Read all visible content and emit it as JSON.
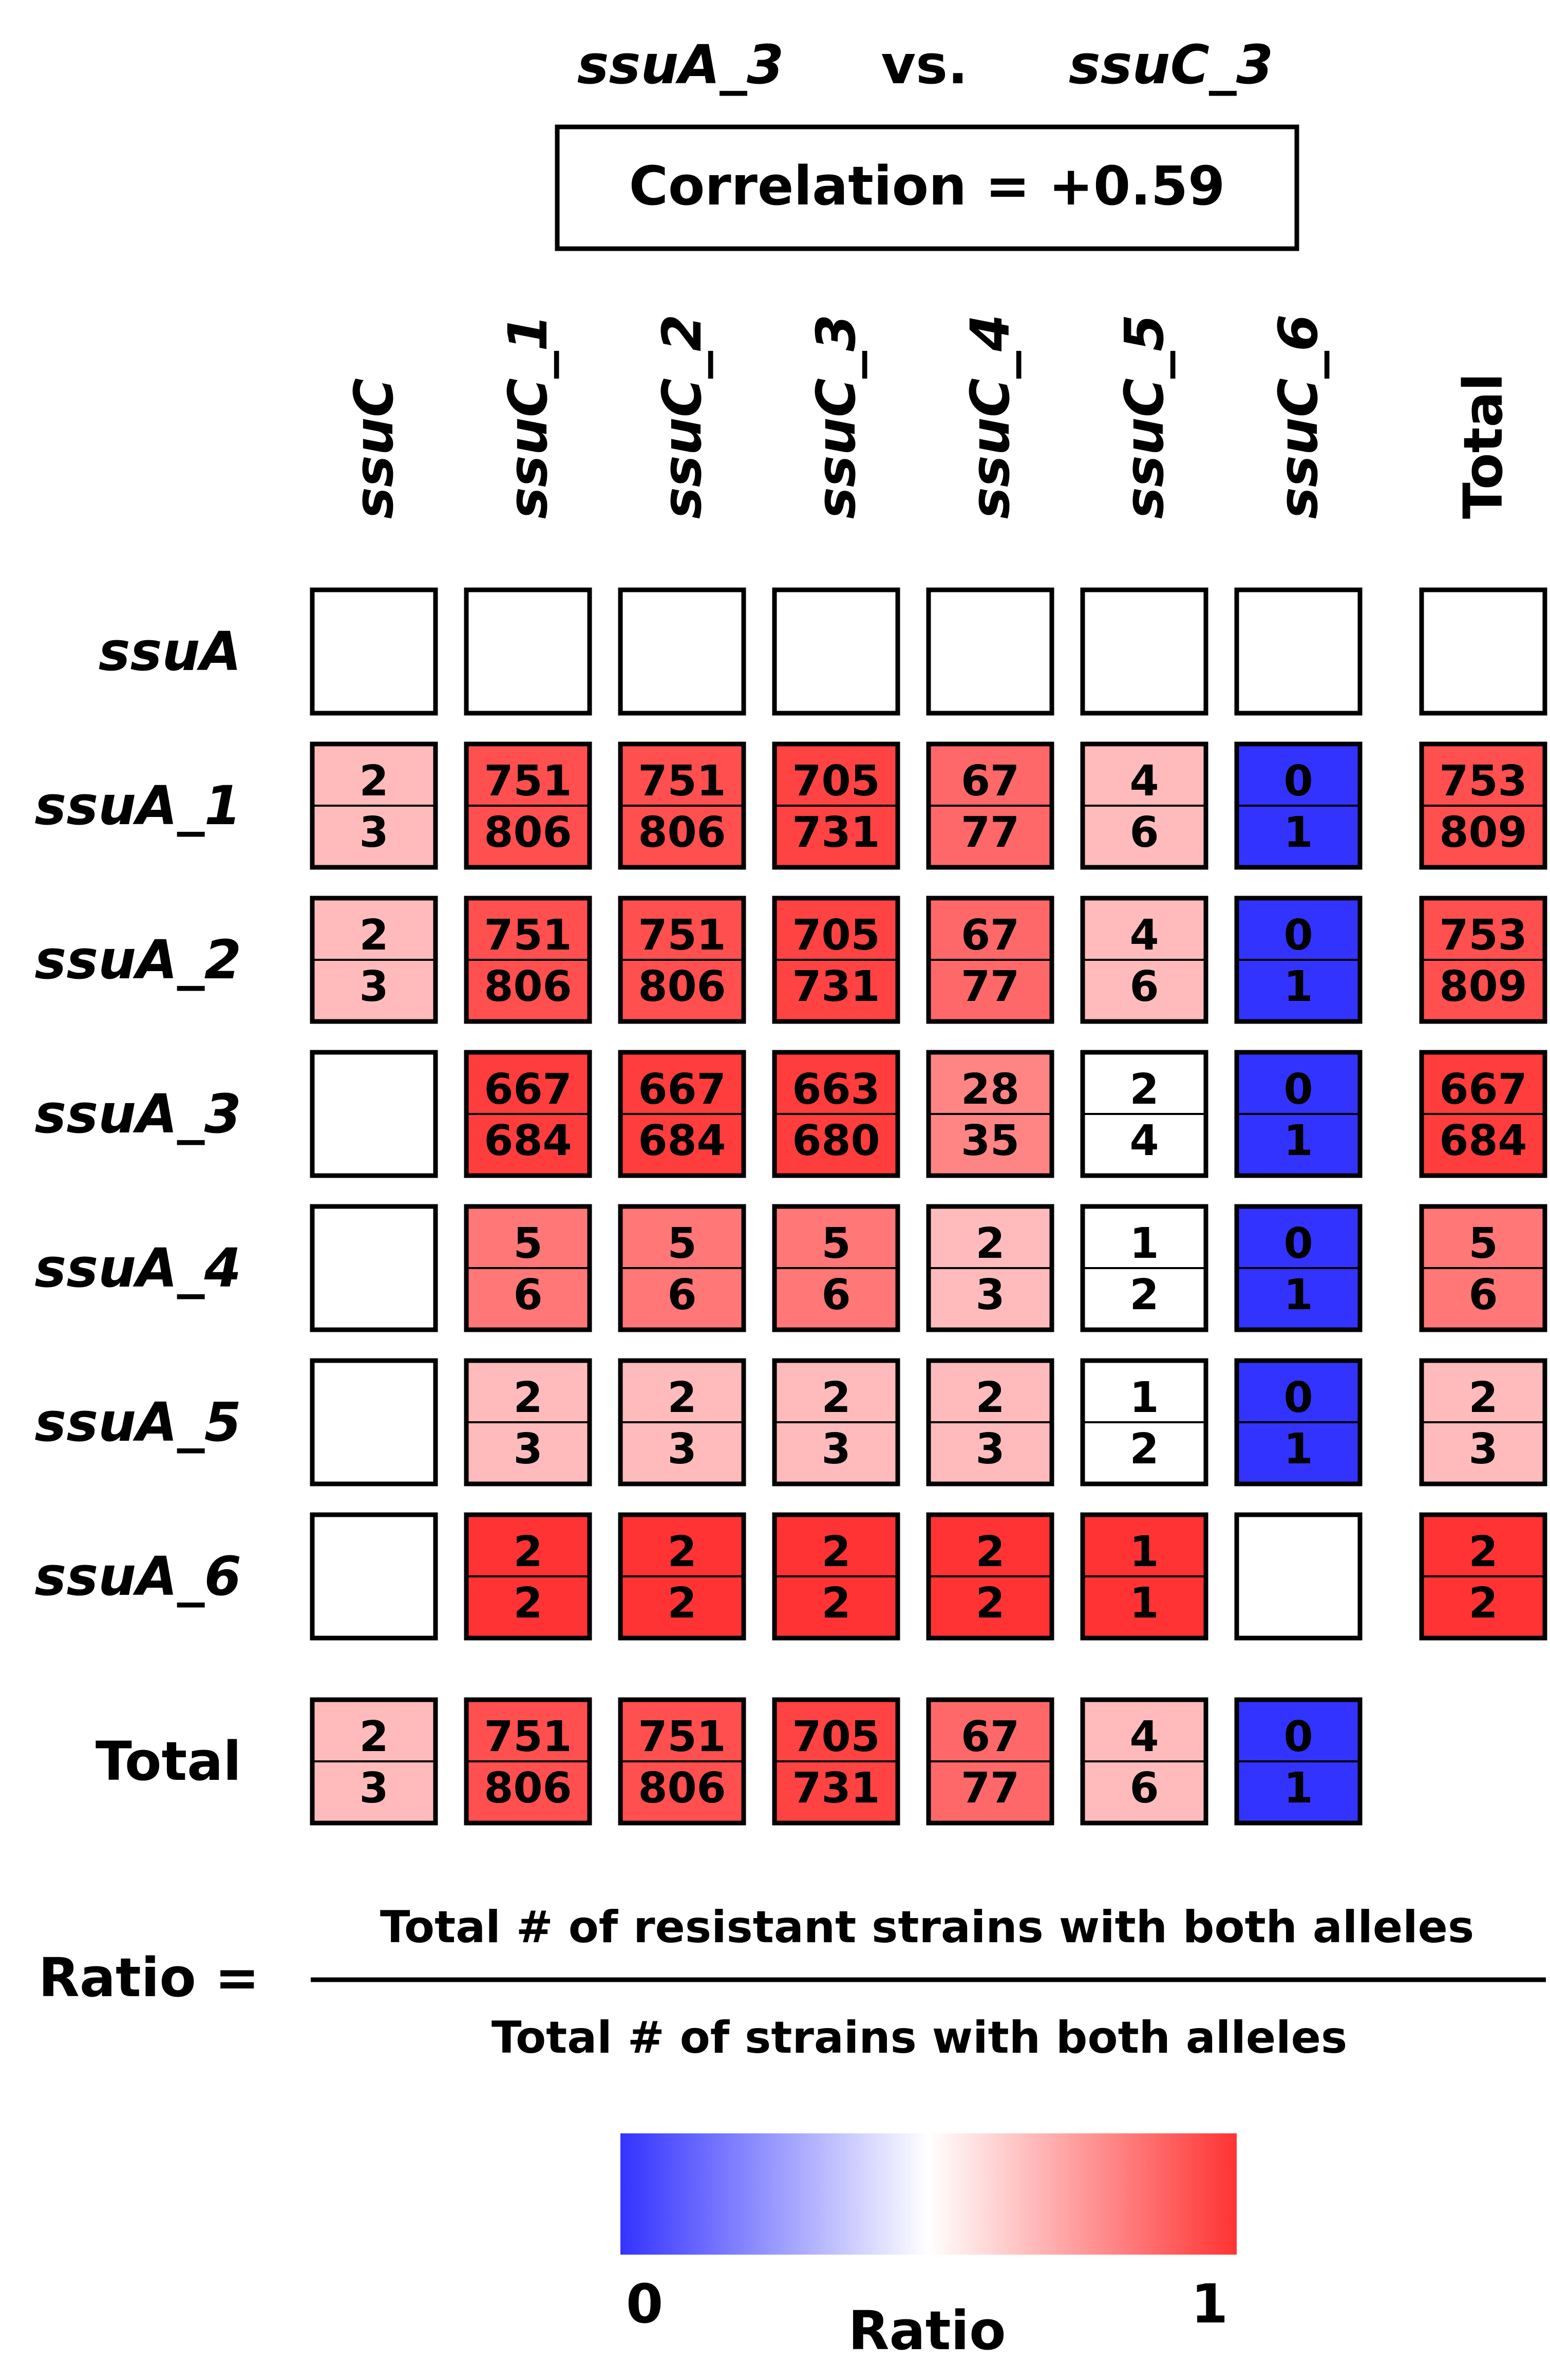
{
  "header": {
    "gene_a": "ssuA_3",
    "vs": "vs.",
    "gene_b": "ssuC_3",
    "correlation_text": "Correlation = +0.59"
  },
  "chart_data": {
    "type": "heatmap",
    "column_labels": [
      "ssuC",
      "ssuC_1",
      "ssuC_2",
      "ssuC_3",
      "ssuC_4",
      "ssuC_5",
      "ssuC_6",
      "Total"
    ],
    "row_labels": [
      "ssuA",
      "ssuA_1",
      "ssuA_2",
      "ssuA_3",
      "ssuA_4",
      "ssuA_5",
      "ssuA_6",
      "Total"
    ],
    "cells": [
      [
        null,
        null,
        null,
        null,
        null,
        null,
        null,
        null
      ],
      [
        [
          2,
          3
        ],
        [
          751,
          806
        ],
        [
          751,
          806
        ],
        [
          705,
          731
        ],
        [
          67,
          77
        ],
        [
          4,
          6
        ],
        [
          0,
          1
        ],
        [
          753,
          809
        ]
      ],
      [
        [
          2,
          3
        ],
        [
          751,
          806
        ],
        [
          751,
          806
        ],
        [
          705,
          731
        ],
        [
          67,
          77
        ],
        [
          4,
          6
        ],
        [
          0,
          1
        ],
        [
          753,
          809
        ]
      ],
      [
        null,
        [
          667,
          684
        ],
        [
          667,
          684
        ],
        [
          663,
          680
        ],
        [
          28,
          35
        ],
        [
          2,
          4
        ],
        [
          0,
          1
        ],
        [
          667,
          684
        ]
      ],
      [
        null,
        [
          5,
          6
        ],
        [
          5,
          6
        ],
        [
          5,
          6
        ],
        [
          2,
          3
        ],
        [
          1,
          2
        ],
        [
          0,
          1
        ],
        [
          5,
          6
        ]
      ],
      [
        null,
        [
          2,
          3
        ],
        [
          2,
          3
        ],
        [
          2,
          3
        ],
        [
          2,
          3
        ],
        [
          1,
          2
        ],
        [
          0,
          1
        ],
        [
          2,
          3
        ]
      ],
      [
        null,
        [
          2,
          2
        ],
        [
          2,
          2
        ],
        [
          2,
          2
        ],
        [
          2,
          2
        ],
        [
          1,
          1
        ],
        null,
        [
          2,
          2
        ]
      ],
      [
        [
          2,
          3
        ],
        [
          751,
          806
        ],
        [
          751,
          806
        ],
        [
          705,
          731
        ],
        [
          67,
          77
        ],
        [
          4,
          6
        ],
        [
          0,
          1
        ],
        "none"
      ]
    ],
    "colorscale": {
      "min": 0,
      "max": 1,
      "min_color": "#3333ff",
      "mid_color": "#ffffff",
      "max_color": "#ff3333"
    }
  },
  "formula": {
    "lhs": "Ratio =",
    "numerator": "Total # of resistant strains with both alleles",
    "denominator": "Total # of strains with both alleles"
  },
  "legend": {
    "min_label": "0",
    "max_label": "1",
    "title": "Ratio"
  }
}
